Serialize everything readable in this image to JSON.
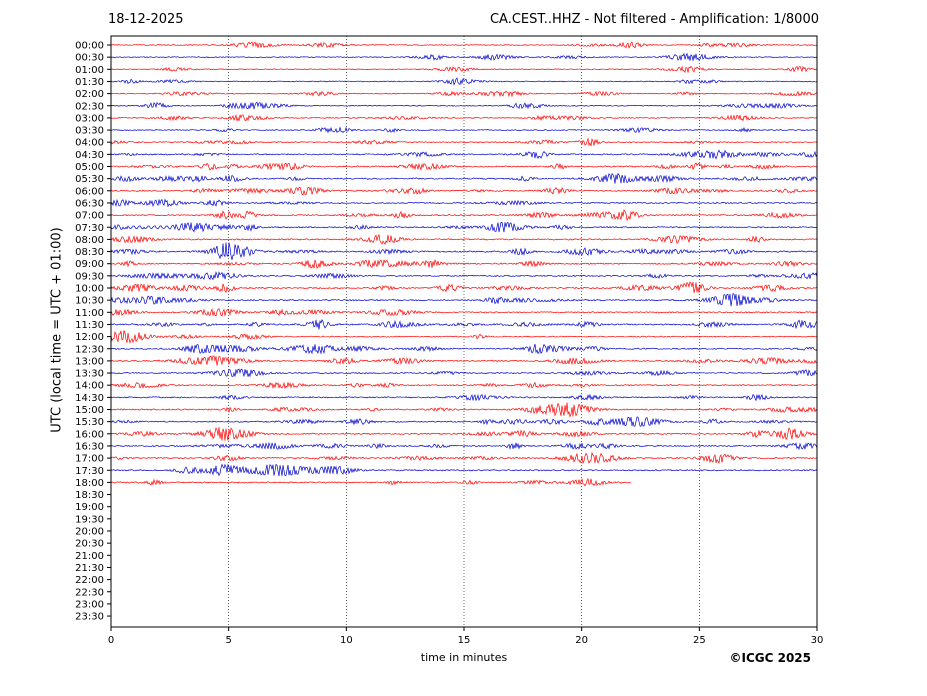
{
  "header": {
    "date": "18-12-2025",
    "title": "CA.CEST..HHZ - Not filtered - Amplification: 1/8000"
  },
  "footer": {
    "copyright": "©ICGC 2025"
  },
  "chart_data": {
    "type": "line",
    "title": "CA.CEST..HHZ - Not filtered - Amplification: 1/8000",
    "xlabel": "time in minutes",
    "ylabel": "UTC (local time = UTC + 01:00)",
    "xlim": [
      0,
      30
    ],
    "xticks": [
      0,
      5,
      10,
      15,
      20,
      25,
      30
    ],
    "grid": "vertical dotted lines at x ticks",
    "row_labels": [
      "00:00",
      "00:30",
      "01:00",
      "01:30",
      "02:00",
      "02:30",
      "03:00",
      "03:30",
      "04:00",
      "04:30",
      "05:00",
      "05:30",
      "06:00",
      "06:30",
      "07:00",
      "07:30",
      "08:00",
      "08:30",
      "09:00",
      "09:30",
      "10:00",
      "10:30",
      "11:00",
      "11:30",
      "12:00",
      "12:30",
      "13:00",
      "13:30",
      "14:00",
      "14:30",
      "15:00",
      "15:30",
      "16:00",
      "16:30",
      "17:00",
      "17:30",
      "18:00",
      "18:30",
      "19:00",
      "19:30",
      "20:00",
      "20:30",
      "21:00",
      "21:30",
      "22:00",
      "22:30",
      "23:00",
      "23:30"
    ],
    "trace_colors": [
      "#ff0000",
      "#0000cc"
    ],
    "filled_rows": 37,
    "last_row_end_minute": 22.1,
    "row_activity": [
      0.4,
      0.4,
      0.4,
      0.45,
      0.4,
      0.5,
      0.45,
      0.5,
      0.5,
      0.8,
      0.8,
      0.85,
      0.8,
      0.8,
      0.8,
      0.85,
      0.85,
      0.9,
      0.85,
      0.85,
      0.85,
      0.85,
      0.8,
      0.9,
      0.6,
      0.8,
      0.8,
      0.75,
      0.8,
      0.8,
      0.85,
      0.8,
      0.85,
      0.85,
      0.85,
      0.85,
      0.8
    ]
  }
}
